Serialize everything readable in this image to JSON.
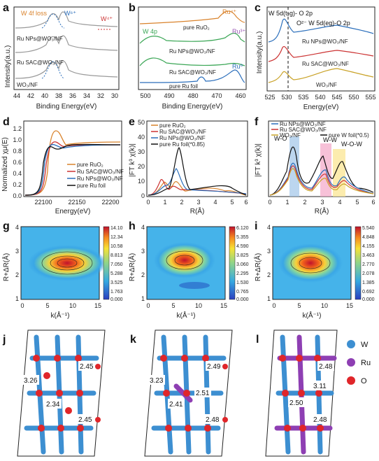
{
  "panels": {
    "a": {
      "label": "a",
      "ylabel": "Intensity(a.u.)",
      "xlabel": "Binding Energy(eV)",
      "xticks": [
        "44",
        "42",
        "40",
        "38",
        "36",
        "34",
        "32",
        "30"
      ],
      "ann_loss": "W 4f loss",
      "ann_w6": "W⁶⁺",
      "ann_w4": "W⁴⁺",
      "traces": [
        "Ru NPs@WO₃/NF",
        "Ru SAC@WO₃/NF",
        "WO₃/NF"
      ]
    },
    "b": {
      "label": "b",
      "xlabel": "Binding Energy(eV)",
      "xticks": [
        "500",
        "490",
        "480",
        "470",
        "460"
      ],
      "ann_ru4": "Ru⁴⁺",
      "ann_ru3": "Ru³⁺",
      "ann_ru0": "Ru⁰",
      "ann_w4p": "W 4p",
      "traces": [
        "pure RuO₂",
        "Ru NPs@WO₃/NF",
        "Ru SAC@WO₃/NF",
        "pure Ru foil"
      ]
    },
    "c": {
      "label": "c",
      "ylabel": "Intensity(a.u.)",
      "xlabel": "Energy(eV)",
      "xticks": [
        "525",
        "530",
        "535",
        "540",
        "545",
        "550",
        "555"
      ],
      "ann1": "W 5d(t₂g)- O 2p",
      "ann2": "O²⁻ W 5d(eg)-O 2p",
      "traces": [
        "Ru NPs@WO₃/NF",
        "Ru SAC@WO₃/NF",
        "WO₃/NF"
      ]
    },
    "d": {
      "label": "d",
      "ylabel": "Normalized χμ(E)",
      "xlabel": "Energy(eV)",
      "xticks": [
        "22100",
        "22150",
        "22200"
      ],
      "yticks": [
        "0.0",
        "0.2",
        "0.4",
        "0.6",
        "0.8",
        "1.0",
        "1.2"
      ],
      "legend": [
        "pure RuO₂",
        "Ru SAC@WO₃/NF",
        "Ru NPs@WO₃/NF",
        "pure Ru foil"
      ]
    },
    "e": {
      "label": "e",
      "ylabel": "|FT k³ χ(k)|",
      "xlabel": "R(Å)",
      "xticks": [
        "0",
        "1",
        "2",
        "3",
        "4",
        "5",
        "6"
      ],
      "yticks": [
        "0",
        "10",
        "20",
        "30",
        "40",
        "50"
      ],
      "legend": [
        "pure RuO₂",
        "Ru SAC@WO₃/NF",
        "Ru NPs@WO₃/NF",
        "pure Ru foil(*0.85)"
      ]
    },
    "f": {
      "label": "f",
      "ylabel": "|FT k³ χ(k)|",
      "xlabel": "R(Å)",
      "xticks": [
        "0",
        "1",
        "2",
        "3",
        "4",
        "5",
        "6"
      ],
      "legend": [
        "Ru NPs@WO₃/NF",
        "Ru SAC@WO₃/NF",
        "WO₃/NF",
        "pure W foil(*0.5)"
      ],
      "ann_wo": "W-O",
      "ann_ww": "W-W",
      "ann_wow": "W-O-W"
    },
    "g": {
      "label": "g",
      "ylabel": "R+ΔR(Å)",
      "xlabel": "k(Å⁻¹)",
      "xticks": [
        "0",
        "5",
        "10",
        "15"
      ],
      "yticks": [
        "1",
        "2",
        "3",
        "4"
      ],
      "colorbar": [
        "14.10",
        "12.34",
        "10.58",
        "8.813",
        "7.050",
        "5.288",
        "3.525",
        "1.763",
        "0.000"
      ]
    },
    "h": {
      "label": "h",
      "ylabel": "R+ΔR(Å)",
      "xlabel": "k(Å⁻¹)",
      "xticks": [
        "0",
        "5",
        "10",
        "15"
      ],
      "yticks": [
        "1",
        "2",
        "3",
        "4"
      ],
      "colorbar": [
        "6.120",
        "5.355",
        "4.590",
        "3.825",
        "3.060",
        "2.295",
        "1.530",
        "0.765",
        "0.000"
      ]
    },
    "i": {
      "label": "i",
      "ylabel": "R+ΔR(Å)",
      "xlabel": "k(Å⁻¹)",
      "xticks": [
        "0",
        "5",
        "10",
        "15"
      ],
      "yticks": [
        "1",
        "2",
        "3",
        "4"
      ],
      "colorbar": [
        "5.540",
        "4.848",
        "4.155",
        "3.463",
        "2.770",
        "2.078",
        "1.385",
        "0.692",
        "0.000"
      ]
    },
    "j": {
      "label": "j",
      "values": [
        "3.26",
        "2.45",
        "2.34",
        "2.45"
      ]
    },
    "k": {
      "label": "k",
      "values": [
        "3.23",
        "2.49",
        "2.51",
        "2.41",
        "2.48"
      ]
    },
    "l": {
      "label": "l",
      "values": [
        "2.48",
        "3.11",
        "2.50",
        "2.48"
      ]
    }
  },
  "atom_legend": [
    "W",
    "Ru",
    "O"
  ],
  "colors": {
    "orange": "#d9822b",
    "red": "#cc3333",
    "blue": "#2a6ebb",
    "black": "#111111",
    "green": "#3aa655",
    "purple": "#9b59b6",
    "gold": "#c9a227"
  }
}
